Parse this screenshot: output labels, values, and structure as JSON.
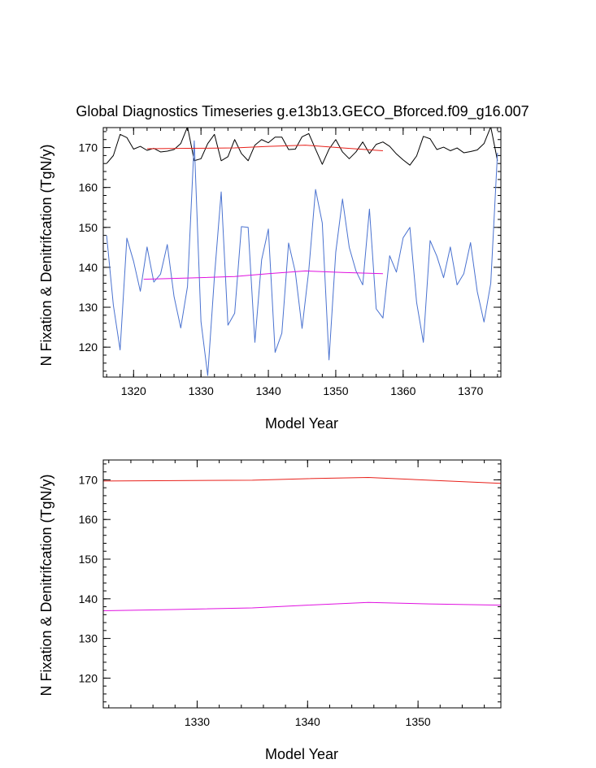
{
  "chart_data": [
    {
      "type": "line",
      "title": "Global Diagnostics Timeseries g.e13b13.GECO_Bforced.f09_g16.007",
      "xlabel": "Model Year",
      "ylabel": "N Fixation & Denitrifcation (TgN/y)",
      "xlim": [
        1315.5,
        1374.5
      ],
      "ylim": [
        112.5,
        175
      ],
      "xticks": [
        1320,
        1330,
        1340,
        1350,
        1360,
        1370
      ],
      "yticks": [
        120,
        130,
        140,
        150,
        160,
        170
      ],
      "grid": false,
      "colors": {
        "black": "#000000",
        "blue": "#4a72d0",
        "red": "#e8201a",
        "magenta": "#e010e0"
      },
      "series": [
        {
          "color": "#000000",
          "x": [
            1316,
            1317,
            1318,
            1319,
            1320,
            1321,
            1322,
            1323,
            1324,
            1325,
            1326,
            1327,
            1328,
            1329,
            1330,
            1331,
            1332,
            1333,
            1334,
            1335,
            1336,
            1337,
            1338,
            1339,
            1340,
            1341,
            1342,
            1343,
            1344,
            1345,
            1346,
            1347,
            1348,
            1349,
            1350,
            1351,
            1352,
            1353,
            1354,
            1355,
            1356,
            1357,
            1358,
            1359,
            1360,
            1361,
            1362,
            1363,
            1364,
            1365,
            1366,
            1367,
            1368,
            1369,
            1370,
            1371,
            1372,
            1373,
            1374
          ],
          "values": [
            166,
            168,
            173.3,
            172.5,
            169.6,
            170.3,
            169.3,
            169.8,
            168.9,
            169.1,
            169.5,
            171,
            175.2,
            166.7,
            167.2,
            171,
            173.3,
            166.7,
            167.7,
            172,
            168.5,
            166.7,
            170.6,
            172,
            171.2,
            172.6,
            172.6,
            169.5,
            169.6,
            172.7,
            173.5,
            169.6,
            165.8,
            169.6,
            172,
            168.9,
            167.2,
            168.9,
            171.4,
            168.5,
            170.8,
            171.4,
            170.3,
            168.4,
            166.9,
            165.6,
            167.9,
            172.8,
            172.2,
            169.5,
            170.1,
            169.2,
            169.9,
            168.7,
            169,
            169.4,
            171,
            175.2,
            166.7
          ]
        },
        {
          "color": "#4a72d0",
          "x": [
            1316,
            1317,
            1318,
            1319,
            1320,
            1321,
            1322,
            1323,
            1324,
            1325,
            1326,
            1327,
            1328,
            1329,
            1330,
            1331,
            1332,
            1333,
            1334,
            1335,
            1336,
            1337,
            1338,
            1339,
            1340,
            1341,
            1342,
            1343,
            1344,
            1345,
            1346,
            1347,
            1348,
            1349,
            1350,
            1351,
            1352,
            1353,
            1354,
            1355,
            1356,
            1357,
            1358,
            1359,
            1360,
            1361,
            1362,
            1363,
            1364,
            1365,
            1366,
            1367,
            1368,
            1369,
            1370,
            1371,
            1372,
            1373,
            1374
          ],
          "values": [
            148,
            130.5,
            119.3,
            147.3,
            141.5,
            134,
            145.1,
            136.3,
            138.3,
            145.7,
            132.7,
            124.8,
            135.2,
            171.7,
            126.4,
            112.9,
            137.7,
            158.9,
            125.5,
            128.5,
            150.2,
            150,
            121.2,
            141.9,
            149.6,
            118.7,
            123.5,
            146.1,
            138.8,
            124.7,
            139.3,
            159.5,
            151.1,
            116.8,
            143.8,
            157.1,
            145,
            139.1,
            135.6,
            154.6,
            129.6,
            127.3,
            142.9,
            138.8,
            147.4,
            150,
            131.2,
            121.2,
            146.7,
            142.8,
            137.4,
            145.1,
            135.6,
            138.4,
            146.2,
            133.9,
            126.3,
            136,
            168.7
          ]
        },
        {
          "color": "#e8201a",
          "x": [
            1322,
            1328,
            1335,
            1340,
            1345.5,
            1351,
            1357
          ],
          "values": [
            169.7,
            169.8,
            169.9,
            170.3,
            170.6,
            169.9,
            169.2
          ]
        },
        {
          "color": "#e010e0",
          "x": [
            1321.5,
            1328,
            1335,
            1340,
            1345.5,
            1351,
            1357
          ],
          "values": [
            137.0,
            137.3,
            137.7,
            138.4,
            139.1,
            138.7,
            138.4
          ]
        }
      ]
    },
    {
      "type": "line",
      "xlabel": "Model Year",
      "ylabel": "N Fixation & Denitrifcation (TgN/y)",
      "xlim": [
        1321.5,
        1357.5
      ],
      "ylim": [
        112.5,
        175
      ],
      "xticks": [
        1330,
        1340,
        1350
      ],
      "yticks": [
        120,
        130,
        140,
        150,
        160,
        170
      ],
      "grid": false,
      "series": [
        {
          "color": "#e8201a",
          "x": [
            1321.5,
            1328,
            1335,
            1340,
            1345.5,
            1351,
            1357.5
          ],
          "values": [
            169.7,
            169.8,
            169.9,
            170.3,
            170.6,
            169.9,
            169.1
          ]
        },
        {
          "color": "#e010e0",
          "x": [
            1321.5,
            1328,
            1335,
            1340,
            1345.5,
            1351,
            1357.5
          ],
          "values": [
            137.0,
            137.3,
            137.7,
            138.4,
            139.1,
            138.7,
            138.4
          ]
        }
      ]
    }
  ]
}
